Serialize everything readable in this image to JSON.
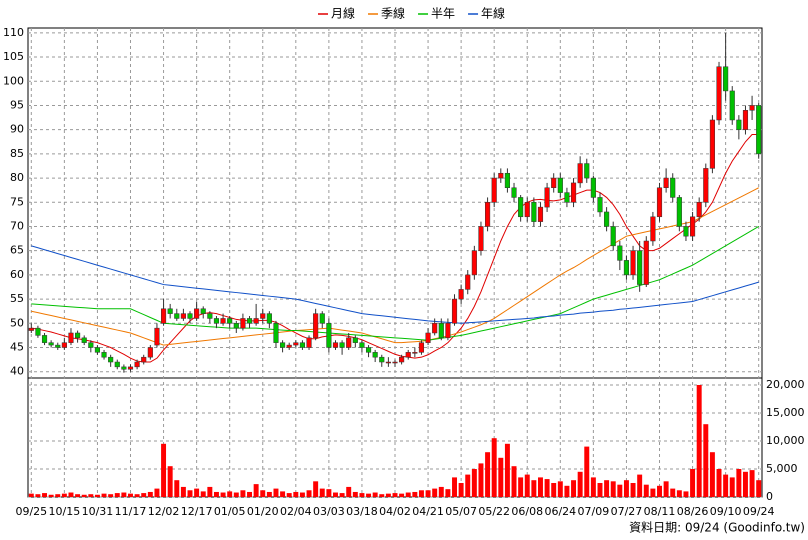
{
  "chart_data": [
    {
      "type": "candlestick",
      "categories": [
        "09/25",
        null,
        null,
        null,
        null,
        "10/15",
        null,
        null,
        null,
        null,
        "10/31",
        null,
        null,
        null,
        null,
        "11/17",
        null,
        null,
        null,
        null,
        "12/02",
        null,
        null,
        null,
        null,
        "12/17",
        null,
        null,
        null,
        null,
        "01/05",
        null,
        null,
        null,
        null,
        "01/20",
        null,
        null,
        null,
        null,
        "02/04",
        null,
        null,
        null,
        null,
        "03/03",
        null,
        null,
        null,
        null,
        "03/18",
        null,
        null,
        null,
        null,
        "04/02",
        null,
        null,
        null,
        null,
        "04/21",
        null,
        null,
        null,
        null,
        "05/07",
        null,
        null,
        null,
        null,
        "05/22",
        null,
        null,
        null,
        null,
        "06/08",
        null,
        null,
        null,
        null,
        "06/24",
        null,
        null,
        null,
        null,
        "07/09",
        null,
        null,
        null,
        null,
        "07/27",
        null,
        null,
        null,
        null,
        "08/11",
        null,
        null,
        null,
        null,
        "08/26",
        null,
        null,
        null,
        null,
        "09/10",
        null,
        null,
        null,
        null,
        "09/24"
      ],
      "open": [
        48.5,
        49,
        47.5,
        46,
        45.5,
        45,
        46,
        48,
        47,
        46,
        45,
        44,
        43,
        42,
        41,
        40.5,
        41,
        42,
        43,
        45.5,
        50,
        53,
        52,
        51,
        52,
        51,
        53,
        52,
        51,
        50,
        51,
        50,
        49,
        51,
        50,
        51,
        52,
        50,
        46,
        45,
        45.5,
        46,
        45,
        47,
        52,
        50,
        45,
        46,
        45,
        47,
        46,
        45,
        44,
        43,
        42,
        42,
        42,
        43,
        44,
        44,
        46,
        48,
        50,
        47,
        50,
        55,
        57,
        60,
        65,
        70,
        75,
        80,
        81,
        78,
        76,
        72,
        75,
        71,
        74,
        78,
        80,
        77,
        75,
        79,
        83,
        80,
        76,
        73,
        70,
        66,
        63,
        60,
        65,
        58,
        67,
        72,
        78,
        80,
        76,
        70,
        68,
        72,
        75,
        82,
        92,
        103,
        98,
        92,
        90,
        94,
        95
      ],
      "high": [
        50,
        49.5,
        48,
        46.5,
        46,
        47,
        49,
        48.5,
        47.5,
        46.5,
        45.5,
        44.5,
        43.5,
        42.5,
        41.5,
        41.5,
        42.5,
        43.5,
        45.5,
        50,
        55,
        54,
        53,
        53,
        52.5,
        54.5,
        53.5,
        52.5,
        51.5,
        52,
        51.5,
        50.5,
        52,
        51.5,
        54,
        53,
        52.5,
        50.5,
        46.5,
        46,
        46.5,
        46.5,
        47.5,
        53,
        52.5,
        51,
        46.5,
        46.5,
        48,
        47.5,
        46.5,
        45.5,
        44.5,
        43.5,
        43,
        42.5,
        43.5,
        44.5,
        45,
        46.5,
        49,
        51,
        51,
        51,
        56,
        58,
        61,
        66,
        71,
        76,
        81,
        82,
        82,
        79,
        76.5,
        76,
        76,
        75,
        79,
        81,
        81,
        78,
        80,
        84.5,
        84,
        80.5,
        77,
        74,
        71,
        67,
        64,
        66,
        67,
        68,
        73,
        79,
        82,
        81,
        76.5,
        71,
        73,
        76,
        83,
        93,
        104,
        110,
        99,
        93,
        95,
        97,
        95.5
      ],
      "low": [
        48,
        47,
        45.5,
        45,
        44.5,
        44.5,
        45.5,
        46,
        45.5,
        44,
        43.5,
        42.5,
        41,
        40.5,
        39.8,
        40,
        40.5,
        41.5,
        42.5,
        45,
        49.5,
        51,
        50.5,
        50.5,
        50,
        50.5,
        51,
        50,
        49,
        49.5,
        49,
        48,
        48.5,
        49,
        49.5,
        50,
        49,
        45,
        44,
        44.5,
        45,
        44.5,
        44.5,
        46.5,
        49,
        44,
        44.5,
        43.5,
        44.5,
        45,
        44,
        43,
        42,
        41,
        41,
        41,
        41.5,
        42.5,
        43,
        43.5,
        45.5,
        47.5,
        46.5,
        46.5,
        49.5,
        54,
        56,
        59,
        64,
        69,
        74,
        79,
        77,
        75,
        71,
        71,
        70,
        70,
        73,
        77,
        76,
        74,
        74,
        78,
        79,
        75,
        72,
        69,
        65,
        61,
        59,
        59,
        56.5,
        57.5,
        66,
        71,
        77,
        75,
        69,
        67,
        67,
        71,
        74,
        81,
        91,
        96,
        91,
        88,
        89,
        92,
        84
      ],
      "close": [
        49,
        47.5,
        46,
        45.5,
        45,
        46,
        48,
        47,
        46,
        45,
        44,
        43,
        42,
        41,
        40.5,
        41,
        42,
        43,
        45,
        49,
        53,
        52,
        51,
        52,
        51,
        53,
        52,
        51,
        50,
        51,
        50,
        49,
        51,
        50,
        51,
        52,
        50,
        46,
        45,
        45.5,
        46,
        45,
        47,
        52,
        50,
        45,
        46,
        45,
        47,
        46,
        45,
        44,
        43,
        42,
        42,
        42,
        43,
        44,
        44,
        46,
        48,
        50,
        47,
        50,
        55,
        57,
        60,
        65,
        70,
        75,
        80,
        81,
        78,
        76,
        72,
        75,
        71,
        74,
        78,
        80,
        77,
        75,
        79,
        83,
        80,
        76,
        73,
        70,
        66,
        63,
        60,
        65,
        58,
        67,
        72,
        78,
        80,
        76,
        70,
        68,
        72,
        75,
        82,
        92,
        103,
        98,
        92,
        90,
        94,
        95,
        85
      ],
      "up_color": "#ff0000",
      "down_color": "#00c000",
      "series": [
        {
          "name": "月線",
          "color": "#e00000",
          "values": [
            49,
            48.8,
            48.5,
            48.2,
            47.8,
            47.4,
            47,
            46.8,
            46.6,
            46.3,
            46,
            45.5,
            45,
            44.3,
            43.6,
            42.8,
            42.2,
            42,
            42,
            42.8,
            44.5,
            46,
            47.5,
            49,
            50.5,
            51.5,
            52,
            52.2,
            52,
            51.6,
            51.2,
            50.8,
            50.6,
            50.5,
            50.5,
            50.6,
            50.6,
            50.2,
            49.5,
            48.7,
            48,
            47.3,
            46.8,
            46.8,
            47.2,
            47.4,
            47.6,
            47.5,
            47.3,
            47,
            46.6,
            46,
            45.4,
            44.8,
            44.2,
            43.6,
            43.2,
            43,
            42.8,
            43,
            43.5,
            44.3,
            45,
            46,
            47.5,
            49,
            51,
            53.5,
            56.5,
            60,
            63.5,
            67,
            70,
            72.5,
            74,
            75,
            75.5,
            75.6,
            75.4,
            75.3,
            75.5,
            76,
            76.5,
            77,
            77.5,
            77.5,
            77,
            76,
            74.5,
            72.5,
            70,
            68,
            66,
            65,
            65,
            65.5,
            66.5,
            67.5,
            68.5,
            69.5,
            70.5,
            71.5,
            73,
            75,
            78,
            81,
            83.5,
            85.5,
            87.5,
            89,
            89
          ]
        },
        {
          "name": "季線",
          "color": "#f07800",
          "values": [
            52.5,
            52.2,
            51.9,
            51.6,
            51.3,
            51,
            50.7,
            50.4,
            50.1,
            49.8,
            49.5,
            49.2,
            48.9,
            48.6,
            48.3,
            48,
            47.5,
            47,
            46.5,
            46,
            45.5,
            45.65,
            45.8,
            45.95,
            46.1,
            46.25,
            46.4,
            46.55,
            46.7,
            46.85,
            47,
            47.15,
            47.3,
            47.45,
            47.6,
            47.75,
            47.9,
            48.05,
            48.2,
            48.35,
            48.5,
            48.6,
            48.7,
            48.8,
            48.9,
            49,
            48.8,
            48.6,
            48.4,
            48.2,
            48,
            47.6,
            47.2,
            46.8,
            46.4,
            46,
            46,
            46.1,
            46.2,
            46.3,
            46.5,
            46.8,
            47.1,
            47.4,
            47.8,
            48.2,
            48.7,
            49.2,
            49.7,
            50.3,
            51,
            51.9,
            52.8,
            53.7,
            54.6,
            55.5,
            56.4,
            57.3,
            58.2,
            59.1,
            60,
            60.8,
            61.5,
            62.3,
            63.2,
            64,
            64.8,
            65.6,
            66.4,
            67.2,
            68,
            68.3,
            68.6,
            68.9,
            69.2,
            69.5,
            69.8,
            70.1,
            70.4,
            70.7,
            71,
            71.7,
            72.4,
            73.1,
            73.8,
            74.5,
            75.2,
            75.9,
            76.6,
            77.3,
            78
          ]
        },
        {
          "name": "半年",
          "color": "#00c000",
          "values": [
            54,
            53.9,
            53.8,
            53.7,
            53.6,
            53.5,
            53.4,
            53.3,
            53.2,
            53.1,
            53,
            53,
            53,
            53,
            53,
            53,
            52.4,
            51.8,
            51.2,
            50.6,
            50,
            49.9,
            49.8,
            49.7,
            49.6,
            49.5,
            49.4,
            49.3,
            49.2,
            49.1,
            49,
            49,
            49,
            49,
            49,
            48.9,
            48.8,
            48.7,
            48.6,
            48.5,
            48.5,
            48.4,
            48.3,
            48.2,
            48.1,
            48,
            47.9,
            47.8,
            47.7,
            47.6,
            47.5,
            47.4,
            47.3,
            47.2,
            47.1,
            47,
            46.9,
            46.8,
            46.7,
            46.6,
            46.5,
            46.7,
            46.9,
            47.1,
            47.3,
            47.5,
            47.8,
            48.1,
            48.4,
            48.7,
            49,
            49.3,
            49.6,
            49.9,
            50.2,
            50.5,
            50.8,
            51.1,
            51.4,
            51.7,
            52,
            52.6,
            53.2,
            53.8,
            54.4,
            55,
            55.4,
            55.8,
            56.2,
            56.6,
            57,
            57.4,
            57.8,
            58.2,
            58.6,
            59,
            59.6,
            60.2,
            60.8,
            61.4,
            62,
            62.8,
            63.6,
            64.4,
            65.2,
            66,
            66.8,
            67.6,
            68.4,
            69.2,
            70
          ]
        },
        {
          "name": "年線",
          "color": "#1050c8",
          "values": [
            66,
            65.6,
            65.2,
            64.8,
            64.4,
            64,
            63.6,
            63.2,
            62.8,
            62.4,
            62,
            61.6,
            61.2,
            60.8,
            60.4,
            60,
            59.6,
            59.2,
            58.8,
            58.4,
            58,
            57.85,
            57.7,
            57.55,
            57.4,
            57.25,
            57.1,
            56.95,
            56.8,
            56.65,
            56.5,
            56.35,
            56.2,
            56.05,
            55.9,
            55.75,
            55.6,
            55.45,
            55.3,
            55.15,
            55,
            54.7,
            54.4,
            54.1,
            53.8,
            53.5,
            53.2,
            52.9,
            52.6,
            52.3,
            52,
            51.85,
            51.7,
            51.55,
            51.4,
            51.25,
            51.1,
            50.95,
            50.8,
            50.65,
            50.5,
            50.4,
            50.3,
            50.2,
            50.1,
            50,
            50.1,
            50.2,
            50.3,
            50.4,
            50.5,
            50.6,
            50.7,
            50.8,
            50.9,
            51,
            51.1,
            51.3,
            51.4,
            51.5,
            51.7,
            51.8,
            51.9,
            52.1,
            52.2,
            52.3,
            52.5,
            52.6,
            52.7,
            52.9,
            53,
            53.15,
            53.3,
            53.45,
            53.6,
            53.75,
            53.9,
            54.05,
            54.2,
            54.35,
            54.5,
            54.9,
            55.3,
            55.7,
            56.1,
            56.5,
            56.9,
            57.3,
            57.7,
            58.1,
            58.5
          ]
        }
      ],
      "ylim": [
        38.7,
        111
      ],
      "yticks": [
        40,
        45,
        50,
        55,
        60,
        65,
        70,
        75,
        80,
        85,
        90,
        95,
        100,
        105,
        110
      ],
      "grid": true,
      "legend": "top"
    },
    {
      "type": "bar",
      "color": "#ff0000",
      "values": [
        600,
        500,
        700,
        400,
        500,
        600,
        800,
        500,
        400,
        500,
        400,
        600,
        500,
        700,
        800,
        600,
        500,
        700,
        900,
        1500,
        9500,
        5500,
        3000,
        1800,
        1200,
        1500,
        1000,
        1800,
        900,
        800,
        1000,
        800,
        1200,
        900,
        2300,
        1200,
        900,
        1500,
        1000,
        700,
        900,
        800,
        1200,
        2800,
        1500,
        1400,
        800,
        700,
        1800,
        900,
        700,
        600,
        800,
        500,
        600,
        700,
        600,
        800,
        900,
        1200,
        1200,
        1500,
        1800,
        1400,
        3500,
        2500,
        4000,
        5000,
        6000,
        8000,
        10500,
        7000,
        9500,
        5500,
        3500,
        4000,
        3000,
        3500,
        3200,
        2500,
        2800,
        2000,
        3000,
        4500,
        9000,
        3500,
        2500,
        3000,
        2800,
        2200,
        3000,
        2500,
        4000,
        2200,
        1500,
        2000,
        2800,
        1500,
        1200,
        1000,
        5000,
        20000,
        13000,
        8000,
        5000,
        4000,
        3500,
        5000,
        4500,
        4800,
        3000
      ],
      "ylim": [
        0,
        21250
      ],
      "yticks": [
        0,
        {
          "value": 5000,
          "label": "5,000"
        },
        {
          "value": 10000,
          "label": "10,000"
        },
        {
          "value": 15000,
          "label": "15,000"
        },
        {
          "value": 20000,
          "label": "20,000"
        }
      ],
      "grid": true
    }
  ],
  "footer": "資料日期: 09/24 (Goodinfo.tw)"
}
